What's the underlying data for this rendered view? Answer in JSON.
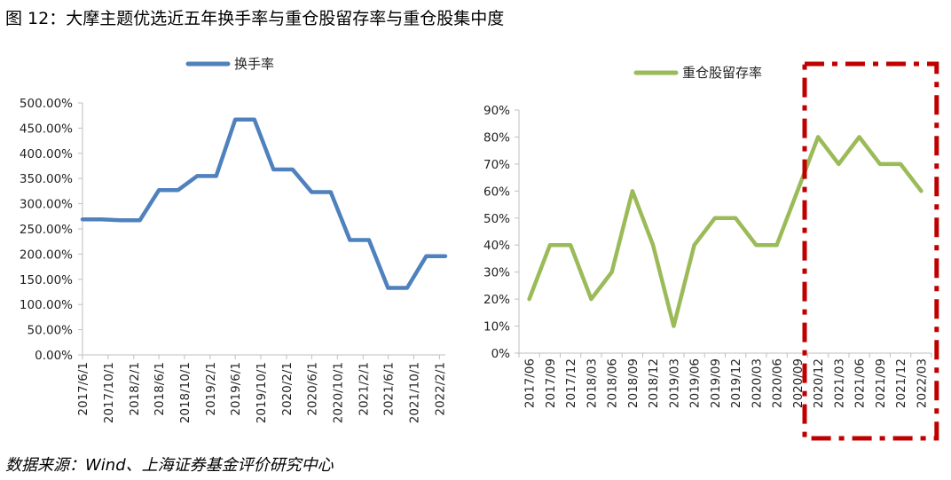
{
  "figure": {
    "title": "图 12：大摩主题优选近五年换手率与重仓股留存率与重仓股集中度",
    "source": "数据来源：Wind、上海证券基金评价研究中心"
  },
  "colors": {
    "turnover": "#4f81bd",
    "retention": "#9bbb59",
    "highlight": "#c00000",
    "axis": "#bfbfbf"
  },
  "chart_data": [
    {
      "type": "line",
      "legend_position": "top-center",
      "grid": false,
      "series": [
        {
          "name": "换手率",
          "values": [
            269,
            269,
            267,
            267,
            327,
            327,
            355,
            355,
            467,
            467,
            368,
            368,
            323,
            323,
            228,
            228,
            133,
            133,
            196,
            196
          ]
        }
      ],
      "y_ticks": [
        "0.00%",
        "50.00%",
        "100.00%",
        "150.00%",
        "200.00%",
        "250.00%",
        "300.00%",
        "350.00%",
        "400.00%",
        "450.00%",
        "500.00%"
      ],
      "ylim": [
        0,
        500
      ],
      "x_tick_labels": [
        "2017/6/1",
        "2017/10/1",
        "2018/2/1",
        "2018/6/1",
        "2018/10/1",
        "2019/2/1",
        "2019/6/1",
        "2019/10/1",
        "2020/2/1",
        "2020/6/1",
        "2020/10/1",
        "2021/2/1",
        "2021/6/1",
        "2021/10/1",
        "2022/2/1"
      ],
      "x_start": "2017/6/1",
      "x_end": "2022/3/1"
    },
    {
      "type": "line",
      "legend_position": "top-left",
      "grid": false,
      "series": [
        {
          "name": "重仓股留存率",
          "values": [
            20,
            40,
            40,
            20,
            30,
            60,
            40,
            10,
            40,
            50,
            50,
            40,
            40,
            60,
            80,
            70,
            80,
            70,
            70,
            60
          ]
        }
      ],
      "categories": [
        "2017/06",
        "2017/09",
        "2017/12",
        "2018/03",
        "2018/06",
        "2018/09",
        "2018/12",
        "2019/03",
        "2019/06",
        "2019/09",
        "2019/12",
        "2020/03",
        "2020/06",
        "2020/09",
        "2020/12",
        "2021/03",
        "2021/06",
        "2021/09",
        "2021/12",
        "2022/03"
      ],
      "y_ticks": [
        "0%",
        "10%",
        "20%",
        "30%",
        "40%",
        "50%",
        "60%",
        "70%",
        "80%",
        "90%"
      ],
      "ylim": [
        0,
        90
      ],
      "highlight_range": [
        "2020/12",
        "2022/03"
      ]
    }
  ]
}
